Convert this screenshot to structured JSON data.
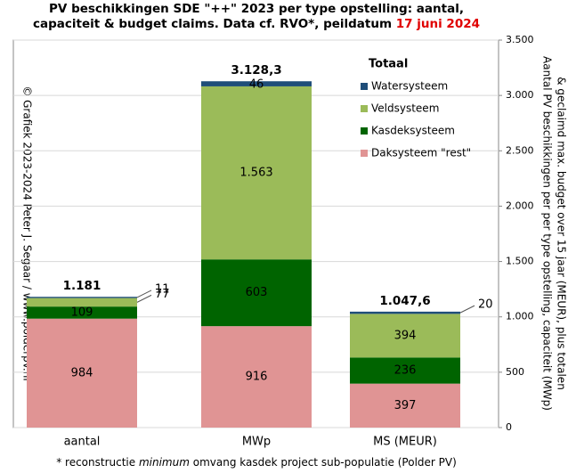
{
  "chart_data": {
    "type": "stacked_bar",
    "title": [
      "PV beschikkingen  SDE \"++\" 2023 per type opstelling: aantal,",
      "capaciteit & budget claims. Data cf. RVO*, peildatum "
    ],
    "title_date": "17 juni 2024",
    "y_axis_label": [
      "Aantal PV beschikkingen per per type opstelling, capaciteit (MWp)",
      "& geclaimd max. budget over 15 jaar (MEUR), plus totalen"
    ],
    "copyright": "© Grafiek 2023-2024 Peter J. Segaar / www.polderpv.nl",
    "footnote": [
      "* reconstructie ",
      "minimum",
      " omvang kasdek project sub-populatie (Polder PV)"
    ],
    "legend_title": "Totaal",
    "categories": [
      "aantal",
      "MWp",
      "MS (MEUR)"
    ],
    "series": [
      {
        "name": "Daksysteem \"rest\"",
        "color": "#e09494",
        "values": [
          984,
          916,
          397
        ]
      },
      {
        "name": "Kasdeksysteem",
        "color": "#006400",
        "values": [
          109,
          603,
          236
        ]
      },
      {
        "name": "Veldsysteem",
        "color": "#9bbb59",
        "values": [
          77,
          1563,
          394
        ],
        "value_labels": [
          "77",
          "1.563",
          "394"
        ]
      },
      {
        "name": "Watersysteem",
        "color": "#1f4e79",
        "values": [
          11,
          46,
          20
        ]
      }
    ],
    "totals": {
      "values": [
        1181,
        3128.3,
        1047.6
      ],
      "value_labels": [
        "1.181",
        "3.128,3",
        "1.047,6"
      ]
    },
    "ylim": [
      0,
      3500
    ],
    "yticks": [
      0,
      500,
      {
        "value": 1000,
        "label": "1.000"
      },
      {
        "value": 1500,
        "label": "1.500"
      },
      {
        "value": 2000,
        "label": "2.000"
      },
      {
        "value": 2500,
        "label": "2.500"
      },
      {
        "value": 3000,
        "label": "3.000"
      },
      {
        "value": 3500,
        "label": "3.500"
      }
    ],
    "grid": true
  }
}
